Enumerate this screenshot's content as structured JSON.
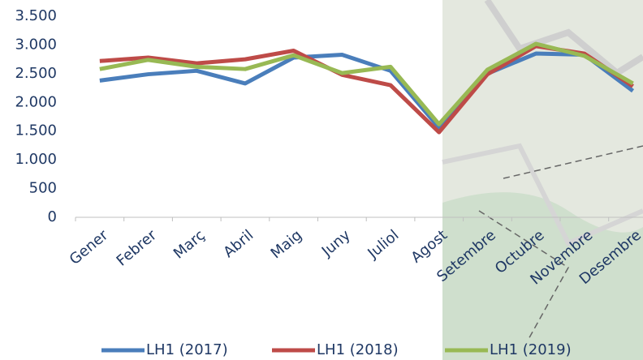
{
  "chart_data": {
    "type": "line",
    "categories": [
      "Gener",
      "Febrer",
      "Març",
      "Abril",
      "Maig",
      "Juny",
      "Juliol",
      "Agost",
      "Setembre",
      "Octubre",
      "Novembre",
      "Desembre"
    ],
    "series": [
      {
        "name": "LH1 (2017)",
        "color": "#4a7ebb",
        "values": [
          2380,
          2490,
          2550,
          2330,
          2780,
          2830,
          2550,
          1560,
          2500,
          2850,
          2830,
          2200
        ]
      },
      {
        "name": "LH1 (2018)",
        "color": "#be4b48",
        "values": [
          2720,
          2780,
          2680,
          2750,
          2900,
          2480,
          2300,
          1480,
          2490,
          2980,
          2850,
          2280
        ]
      },
      {
        "name": "LH1 (2019)",
        "color": "#98b954",
        "values": [
          2580,
          2740,
          2620,
          2580,
          2820,
          2510,
          2620,
          1620,
          2570,
          3020,
          2810,
          2330
        ]
      }
    ],
    "ylim": [
      0,
      3500
    ],
    "yticks": [
      {
        "value": 0,
        "label": "0"
      },
      {
        "value": 500,
        "label": "500"
      },
      {
        "value": 1000,
        "label": "1.000"
      },
      {
        "value": 1500,
        "label": "1.500"
      },
      {
        "value": 2000,
        "label": "2.000"
      },
      {
        "value": 2500,
        "label": "2.500"
      },
      {
        "value": 3000,
        "label": "3.000"
      },
      {
        "value": 3500,
        "label": "3.500"
      }
    ],
    "legend": "bottom"
  }
}
